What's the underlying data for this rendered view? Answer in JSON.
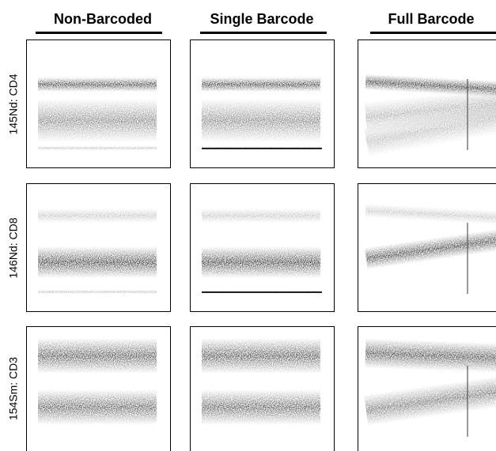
{
  "columns": [
    "Non-Barcoded",
    "Single Barcode",
    "Full Barcode"
  ],
  "rows": [
    "145Nd: CD4",
    "146Nd: CD8",
    "154Sm: CD3"
  ]
}
